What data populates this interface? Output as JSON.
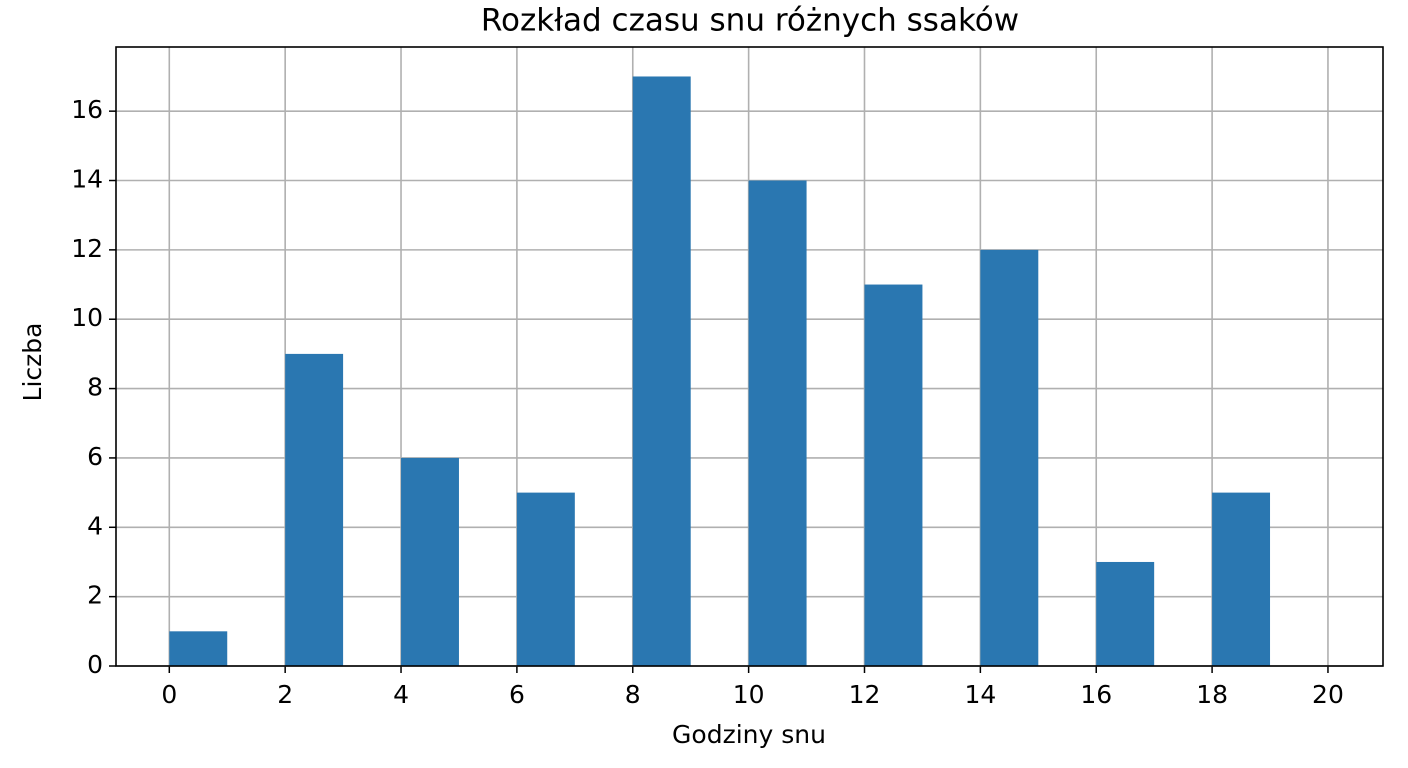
{
  "chart_data": {
    "type": "histogram",
    "title": "Rozkład czasu snu różnych ssaków",
    "x_label": "Godziny snu",
    "y_label": "Liczba",
    "bins": [
      0,
      1,
      2,
      3,
      4,
      5,
      6,
      7,
      8,
      9,
      10,
      11,
      12,
      13,
      14,
      15,
      16,
      17,
      18,
      19,
      20
    ],
    "values": [
      1,
      0,
      9,
      0,
      6,
      0,
      5,
      0,
      17,
      0,
      14,
      0,
      11,
      0,
      12,
      0,
      3,
      0,
      5,
      0
    ],
    "color": "#2a77b1",
    "xlim": [
      -0.92,
      20.95
    ],
    "ylim": [
      0,
      17.85
    ],
    "xticks": [
      0,
      2,
      4,
      6,
      8,
      10,
      12,
      14,
      16,
      18,
      20
    ],
    "yticks": [
      0,
      2,
      4,
      6,
      8,
      10,
      12,
      14,
      16
    ],
    "grid": true
  }
}
